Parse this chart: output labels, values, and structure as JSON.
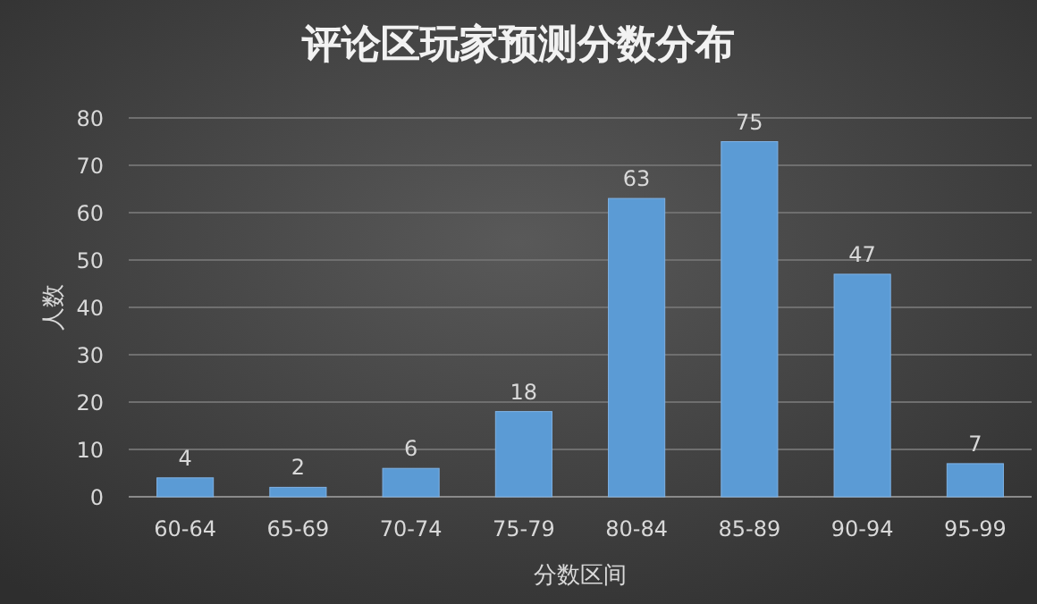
{
  "chart_data": {
    "type": "bar",
    "title": "评论区玩家预测分数分布",
    "xlabel": "分数区间",
    "ylabel": "人数",
    "categories": [
      "60-64",
      "65-69",
      "70-74",
      "75-79",
      "80-84",
      "85-89",
      "90-94",
      "95-99"
    ],
    "values": [
      4,
      2,
      6,
      18,
      63,
      75,
      47,
      7
    ],
    "color": "#5b9bd5",
    "ylim": [
      0,
      80
    ],
    "yticks": [
      0,
      10,
      20,
      30,
      40,
      50,
      60,
      70,
      80
    ],
    "grid": "y",
    "data_labels": true
  }
}
